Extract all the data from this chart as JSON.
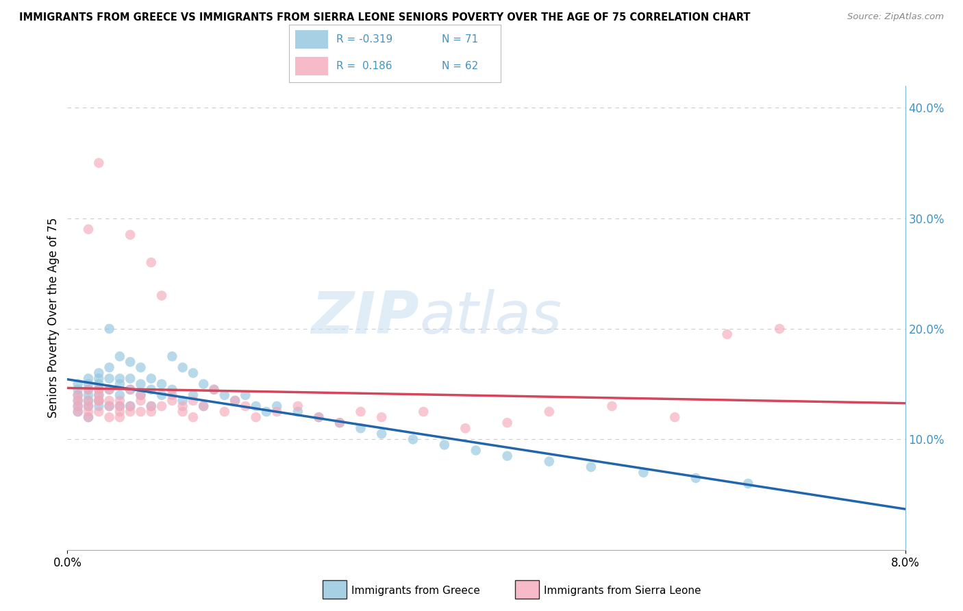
{
  "title": "IMMIGRANTS FROM GREECE VS IMMIGRANTS FROM SIERRA LEONE SENIORS POVERTY OVER THE AGE OF 75 CORRELATION CHART",
  "source": "Source: ZipAtlas.com",
  "ylabel": "Seniors Poverty Over the Age of 75",
  "legend_label_blue": "Immigrants from Greece",
  "legend_label_pink": "Immigrants from Sierra Leone",
  "legend_R_blue": "-0.319",
  "legend_N_blue": "71",
  "legend_R_pink": "0.186",
  "legend_N_pink": "62",
  "watermark_zip": "ZIP",
  "watermark_atlas": "atlas",
  "blue_color": "#92c5de",
  "pink_color": "#f4a9bb",
  "blue_line_color": "#2166ac",
  "pink_line_color": "#d6455a",
  "background_color": "#ffffff",
  "grid_color": "#cccccc",
  "right_axis_color": "#4393c3",
  "xmin": 0.0,
  "xmax": 0.08,
  "ymin": 0.0,
  "ymax": 0.42,
  "blue_scatter_x": [
    0.001,
    0.001,
    0.001,
    0.001,
    0.001,
    0.001,
    0.002,
    0.002,
    0.002,
    0.002,
    0.002,
    0.002,
    0.002,
    0.003,
    0.003,
    0.003,
    0.003,
    0.003,
    0.003,
    0.003,
    0.004,
    0.004,
    0.004,
    0.004,
    0.004,
    0.005,
    0.005,
    0.005,
    0.005,
    0.005,
    0.006,
    0.006,
    0.006,
    0.006,
    0.007,
    0.007,
    0.007,
    0.008,
    0.008,
    0.008,
    0.009,
    0.009,
    0.01,
    0.01,
    0.011,
    0.011,
    0.012,
    0.012,
    0.013,
    0.013,
    0.014,
    0.015,
    0.016,
    0.017,
    0.018,
    0.019,
    0.02,
    0.022,
    0.024,
    0.026,
    0.028,
    0.03,
    0.033,
    0.036,
    0.039,
    0.042,
    0.046,
    0.05,
    0.055,
    0.06,
    0.065
  ],
  "blue_scatter_y": [
    0.135,
    0.14,
    0.145,
    0.13,
    0.125,
    0.15,
    0.14,
    0.135,
    0.155,
    0.12,
    0.145,
    0.15,
    0.13,
    0.155,
    0.14,
    0.13,
    0.145,
    0.16,
    0.15,
    0.135,
    0.2,
    0.155,
    0.145,
    0.165,
    0.13,
    0.175,
    0.15,
    0.14,
    0.155,
    0.13,
    0.155,
    0.145,
    0.17,
    0.13,
    0.165,
    0.15,
    0.14,
    0.155,
    0.145,
    0.13,
    0.15,
    0.14,
    0.175,
    0.145,
    0.165,
    0.135,
    0.16,
    0.14,
    0.15,
    0.13,
    0.145,
    0.14,
    0.135,
    0.14,
    0.13,
    0.125,
    0.13,
    0.125,
    0.12,
    0.115,
    0.11,
    0.105,
    0.1,
    0.095,
    0.09,
    0.085,
    0.08,
    0.075,
    0.07,
    0.065,
    0.06
  ],
  "pink_scatter_x": [
    0.001,
    0.001,
    0.001,
    0.001,
    0.002,
    0.002,
    0.002,
    0.002,
    0.002,
    0.003,
    0.003,
    0.003,
    0.003,
    0.003,
    0.004,
    0.004,
    0.004,
    0.004,
    0.005,
    0.005,
    0.005,
    0.005,
    0.006,
    0.006,
    0.006,
    0.006,
    0.007,
    0.007,
    0.007,
    0.008,
    0.008,
    0.008,
    0.009,
    0.009,
    0.01,
    0.01,
    0.011,
    0.011,
    0.012,
    0.012,
    0.013,
    0.014,
    0.015,
    0.016,
    0.017,
    0.018,
    0.02,
    0.022,
    0.024,
    0.026,
    0.028,
    0.03,
    0.034,
    0.038,
    0.042,
    0.046,
    0.052,
    0.058,
    0.063,
    0.068,
    0.002,
    0.003
  ],
  "pink_scatter_y": [
    0.13,
    0.135,
    0.14,
    0.125,
    0.145,
    0.13,
    0.12,
    0.135,
    0.125,
    0.35,
    0.14,
    0.135,
    0.125,
    0.145,
    0.135,
    0.13,
    0.12,
    0.145,
    0.13,
    0.125,
    0.12,
    0.135,
    0.285,
    0.13,
    0.125,
    0.145,
    0.14,
    0.125,
    0.135,
    0.26,
    0.13,
    0.125,
    0.23,
    0.13,
    0.135,
    0.14,
    0.13,
    0.125,
    0.135,
    0.12,
    0.13,
    0.145,
    0.125,
    0.135,
    0.13,
    0.12,
    0.125,
    0.13,
    0.12,
    0.115,
    0.125,
    0.12,
    0.125,
    0.11,
    0.115,
    0.125,
    0.13,
    0.12,
    0.195,
    0.2,
    0.29,
    0.135
  ]
}
